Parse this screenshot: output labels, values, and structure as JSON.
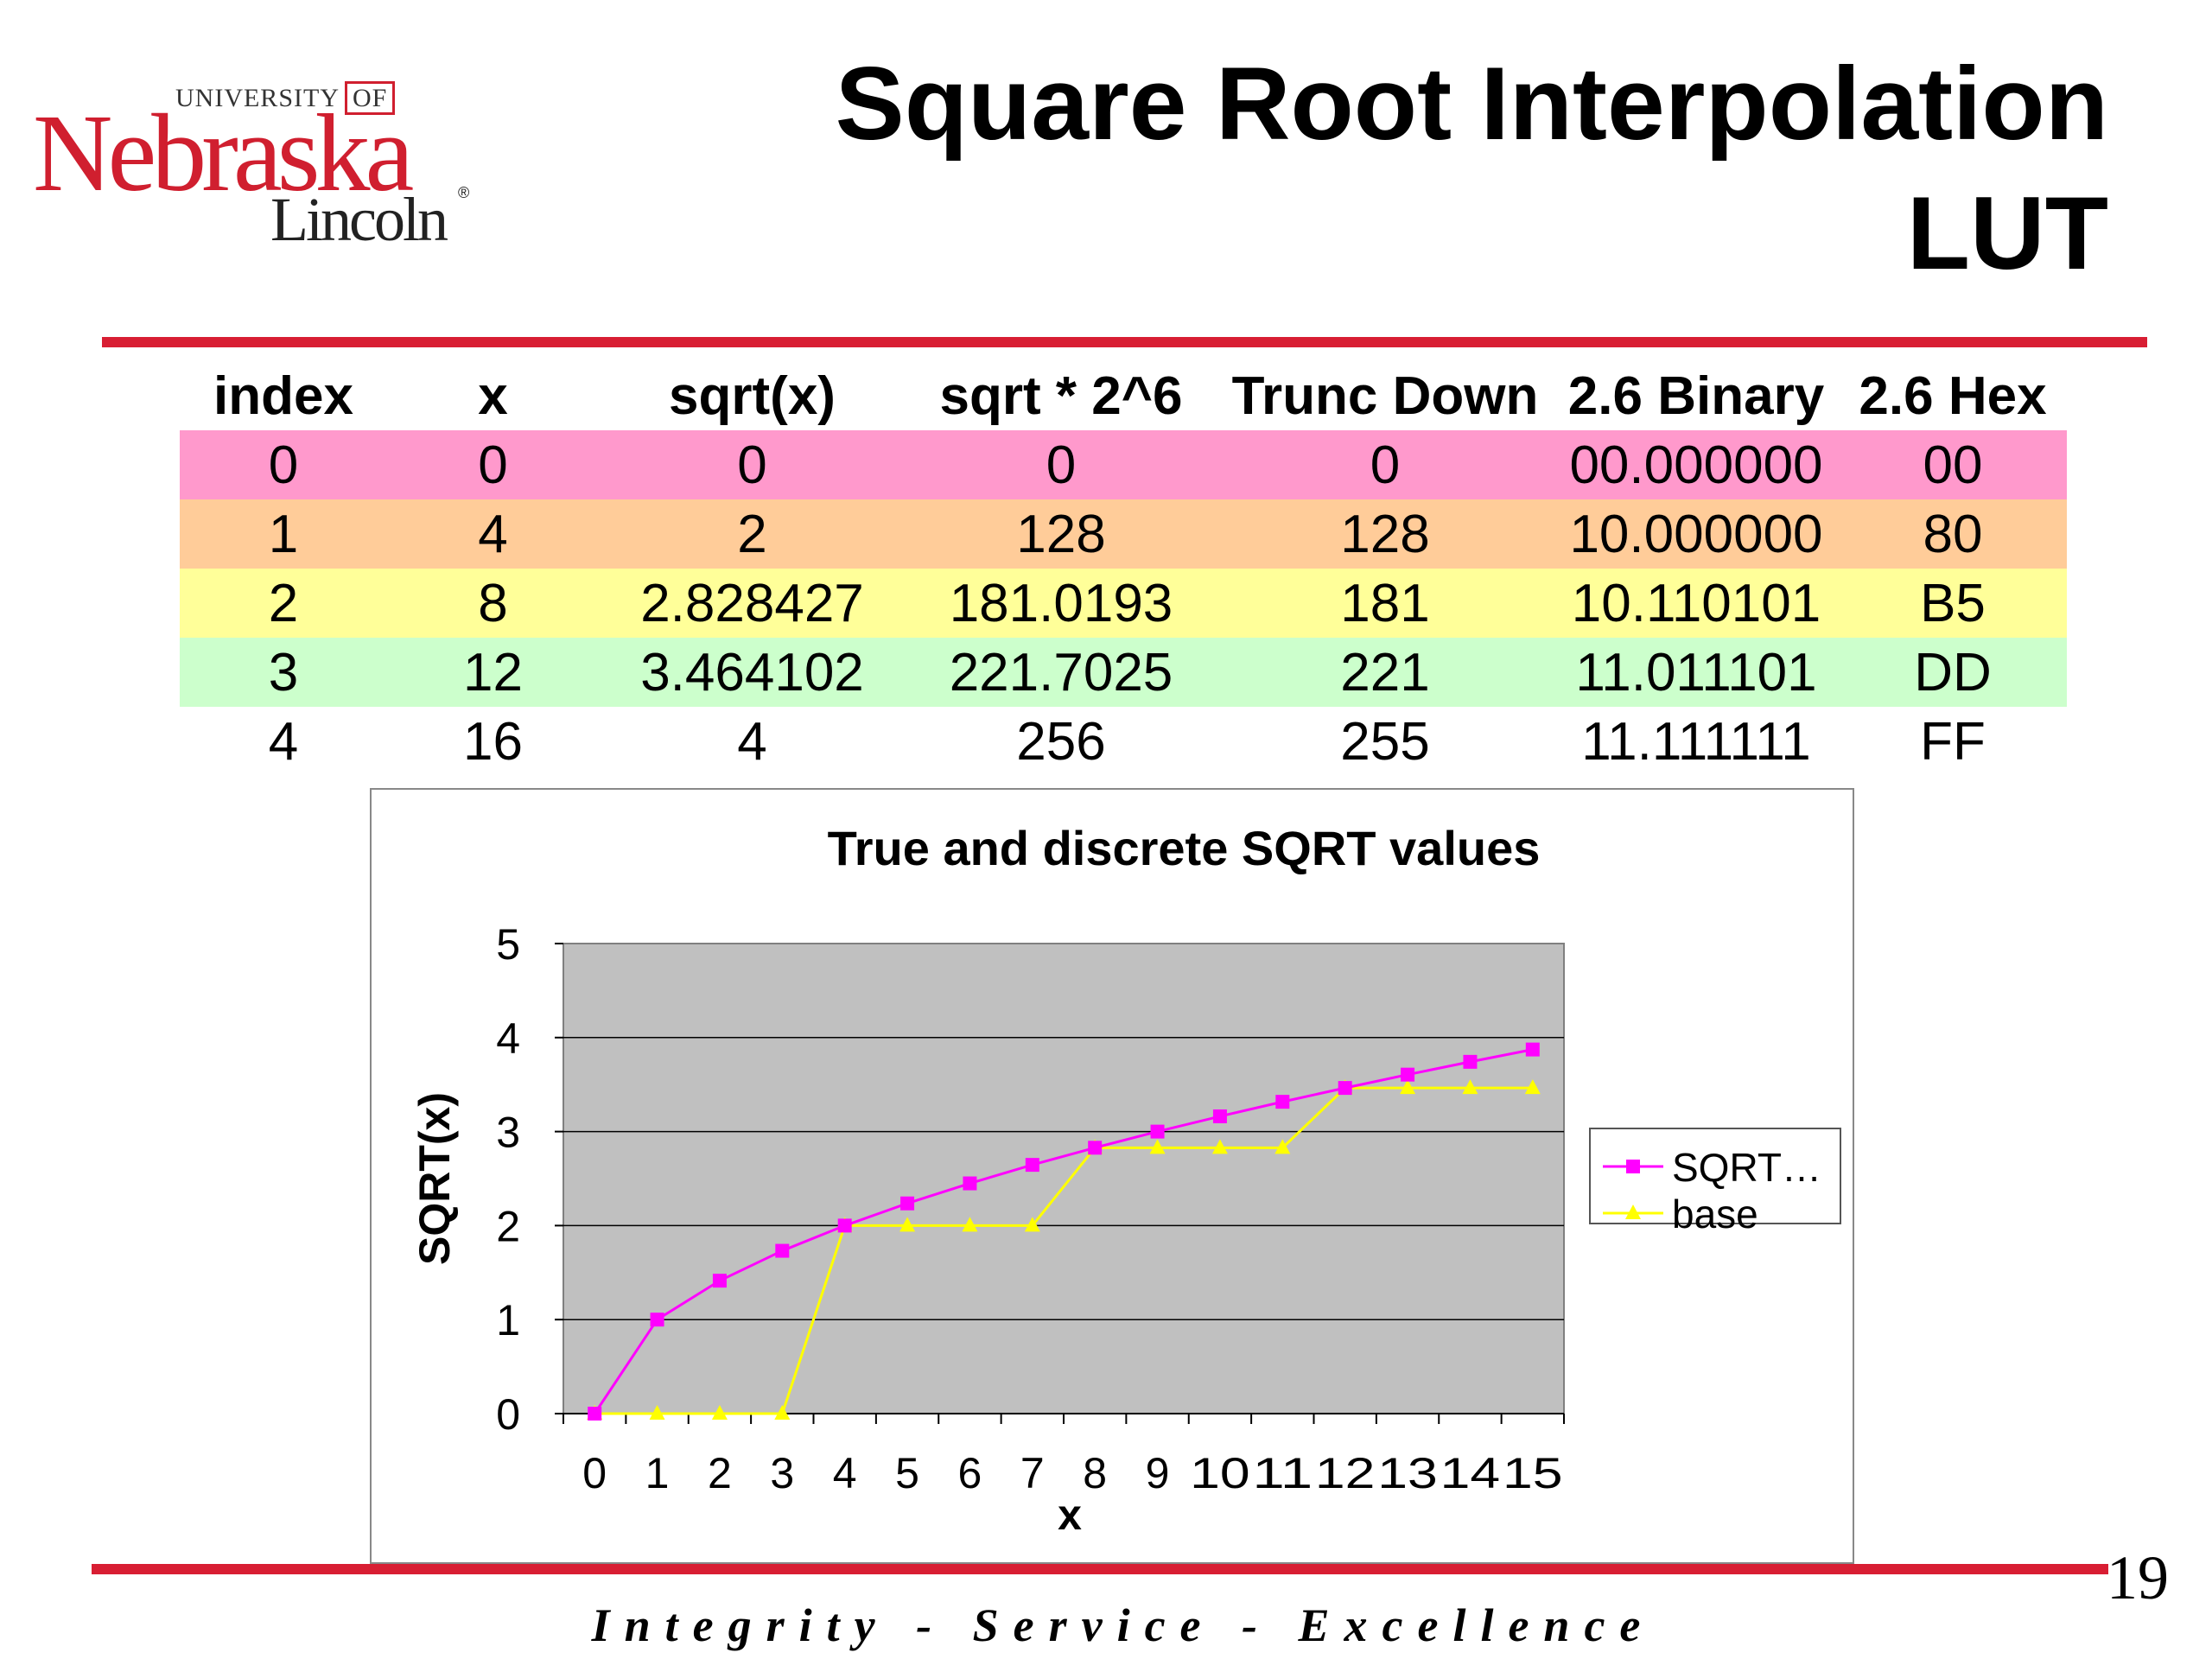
{
  "logo": {
    "university": "UNIVERSITY",
    "of": "OF",
    "name": "Nebraska",
    "campus": "Lincoln",
    "mark": "®"
  },
  "title": {
    "line1": "Square Root Interpolation",
    "line2": "LUT"
  },
  "table": {
    "headers": [
      "index",
      "x",
      "sqrt(x)",
      "sqrt * 2^6",
      "Trunc Down",
      "2.6 Binary",
      "2.6 Hex"
    ],
    "rows": [
      [
        "0",
        "0",
        "0",
        "0",
        "0",
        "00.000000",
        "00"
      ],
      [
        "1",
        "4",
        "2",
        "128",
        "128",
        "10.000000",
        "80"
      ],
      [
        "2",
        "8",
        "2.828427",
        "181.0193",
        "181",
        "10.110101",
        "B5"
      ],
      [
        "3",
        "12",
        "3.464102",
        "221.7025",
        "221",
        "11.011101",
        "DD"
      ],
      [
        "4",
        "16",
        "4",
        "256",
        "255",
        "11.111111",
        "FF"
      ]
    ],
    "row_colors": [
      "#ff99cc",
      "#ffcc99",
      "#ffff99",
      "#ccffcc",
      "#ffffff"
    ]
  },
  "chart_data": {
    "type": "line",
    "title": "True and discrete SQRT values",
    "xlabel": "x",
    "ylabel": "SQRT(x)",
    "categories": [
      "0",
      "1",
      "2",
      "3",
      "4",
      "5",
      "6",
      "7",
      "8",
      "9",
      "10",
      "11",
      "12",
      "13",
      "14",
      "15"
    ],
    "ylim": [
      0,
      5
    ],
    "yticks": [
      0,
      1,
      2,
      3,
      4,
      5
    ],
    "grid": true,
    "legend_position": "right",
    "plot_background": "#c0c0c0",
    "series": [
      {
        "name": "SQRT…",
        "color": "#ff00ff",
        "marker": "square",
        "values": [
          0,
          1,
          1.414,
          1.732,
          2,
          2.236,
          2.449,
          2.646,
          2.828,
          3,
          3.162,
          3.317,
          3.464,
          3.606,
          3.742,
          3.873
        ]
      },
      {
        "name": "base",
        "color": "#ffff00",
        "marker": "triangle",
        "values": [
          0,
          0,
          0,
          0,
          2,
          2,
          2,
          2,
          2.828,
          2.828,
          2.828,
          2.828,
          3.464,
          3.464,
          3.464,
          3.464
        ]
      }
    ]
  },
  "page_number": "19",
  "footer": "Integrity - Service - Excellence"
}
